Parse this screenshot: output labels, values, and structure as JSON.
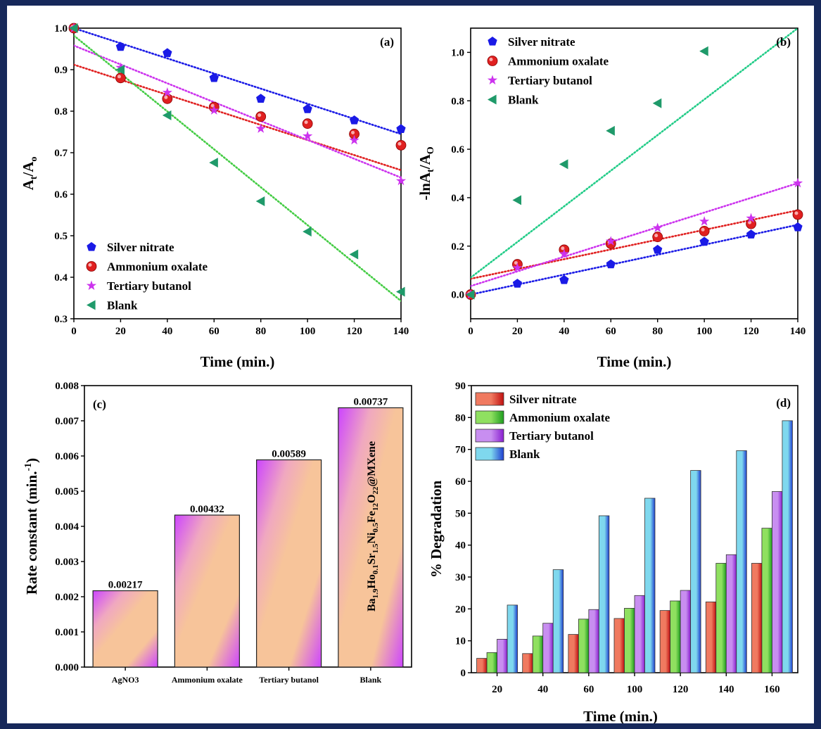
{
  "colors": {
    "frame": "#16285a",
    "silver_nitrate": "#1a1ae6",
    "ammonium_oxalate": "#e02020",
    "tertiary_butanol": "#cc33ee",
    "blank": "#1f9a6a",
    "blank_fit": "#44cc44",
    "blank_fit_b": "#22cc88"
  },
  "chart_data": [
    {
      "panel": "(a)",
      "type": "scatter",
      "xlabel": "Time (min.)",
      "ylabel_main": "A",
      "ylabel_sub1": "t",
      "ylabel_mid": "/A",
      "ylabel_sub2": "o",
      "xlim": [
        0,
        140
      ],
      "ylim": [
        0.3,
        1.0
      ],
      "xticks": [
        "0",
        "20",
        "40",
        "60",
        "80",
        "100",
        "120",
        "140"
      ],
      "yticks": [
        "0.3",
        "0.4",
        "0.5",
        "0.6",
        "0.7",
        "0.8",
        "0.9",
        "1.0"
      ],
      "legend": [
        "Silver nitrate",
        "Ammonium oxalate",
        "Tertiary butanol",
        "Blank"
      ],
      "x": [
        0,
        20,
        40,
        60,
        80,
        100,
        120,
        140
      ],
      "series": [
        {
          "name": "Silver nitrate",
          "marker": "pentagon",
          "values": [
            1.0,
            0.955,
            0.94,
            0.88,
            0.83,
            0.805,
            0.778,
            0.757
          ],
          "fit": [
            1.0,
            0.745
          ]
        },
        {
          "name": "Ammonium oxalate",
          "marker": "circle",
          "values": [
            1.0,
            0.88,
            0.83,
            0.81,
            0.787,
            0.77,
            0.745,
            0.718
          ],
          "fit": [
            0.912,
            0.658
          ]
        },
        {
          "name": "Tertiary butanol",
          "marker": "star",
          "values": [
            1.0,
            0.905,
            0.845,
            0.802,
            0.758,
            0.74,
            0.73,
            0.632
          ],
          "fit": [
            0.958,
            0.64
          ]
        },
        {
          "name": "Blank",
          "marker": "triangle",
          "values": [
            1.0,
            0.9,
            0.79,
            0.676,
            0.583,
            0.51,
            0.455,
            0.365
          ],
          "fit": [
            0.982,
            0.343
          ]
        }
      ]
    },
    {
      "panel": "(b)",
      "type": "scatter",
      "xlabel": "Time (min.)",
      "ylabel_main": "-lnA",
      "ylabel_sub1": "t",
      "ylabel_mid": "/A",
      "ylabel_sub2": "O",
      "xlim": [
        0,
        140
      ],
      "ylim": [
        -0.1,
        1.1
      ],
      "xticks": [
        "0",
        "20",
        "40",
        "60",
        "80",
        "100",
        "120",
        "140"
      ],
      "yticks": [
        "0.0",
        "0.2",
        "0.4",
        "0.6",
        "0.8",
        "1.0"
      ],
      "legend": [
        "Silver nitrate",
        "Ammonium oxalate",
        "Tertiary butanol",
        "Blank"
      ],
      "series": [
        {
          "name": "Silver nitrate",
          "marker": "pentagon",
          "x": [
            0,
            20,
            40,
            60,
            80,
            100,
            120,
            140
          ],
          "values": [
            0.0,
            0.045,
            0.06,
            0.125,
            0.185,
            0.218,
            0.248,
            0.278
          ],
          "fit": [
            0.0,
            0.288
          ]
        },
        {
          "name": "Ammonium oxalate",
          "marker": "circle",
          "x": [
            0,
            20,
            40,
            60,
            80,
            100,
            120,
            140
          ],
          "values": [
            0.0,
            0.125,
            0.185,
            0.21,
            0.238,
            0.262,
            0.292,
            0.33
          ],
          "fit": [
            0.065,
            0.348
          ]
        },
        {
          "name": "Tertiary butanol",
          "marker": "star",
          "x": [
            0,
            20,
            40,
            60,
            80,
            100,
            120,
            140
          ],
          "values": [
            0.0,
            0.11,
            0.168,
            0.22,
            0.275,
            0.302,
            0.315,
            0.46
          ],
          "fit": [
            0.035,
            0.46
          ]
        },
        {
          "name": "Blank",
          "marker": "triangle",
          "x": [
            0,
            20,
            40,
            60,
            80,
            100
          ],
          "values": [
            0.0,
            0.39,
            0.538,
            0.676,
            0.79,
            1.005
          ],
          "fit": [
            0.07,
            1.1
          ]
        }
      ]
    },
    {
      "panel": "(c)",
      "type": "bar",
      "ylabel": "Rate constant (min.",
      "ylabel_sup": "-1",
      "ylabel_end": ")",
      "ylim": [
        0,
        0.008
      ],
      "yticks": [
        "0.000",
        "0.001",
        "0.002",
        "0.003",
        "0.004",
        "0.005",
        "0.006",
        "0.007",
        "0.008"
      ],
      "categories": [
        "AgNO3",
        "Ammonium oxalate",
        "Tertiary butanol",
        "Blank"
      ],
      "values": [
        0.00217,
        0.00432,
        0.00589,
        0.00737
      ],
      "value_labels": [
        "0.00217",
        "0.00432",
        "0.00589",
        "0.00737"
      ],
      "annotation": [
        {
          "t": "Ba",
          "s": ""
        },
        {
          "t": "1.9",
          "s": "sub"
        },
        {
          "t": "Ho",
          "s": ""
        },
        {
          "t": "0.1",
          "s": "sub"
        },
        {
          "t": "Sr",
          "s": ""
        },
        {
          "t": "1.5",
          "s": "sub"
        },
        {
          "t": "Ni",
          "s": ""
        },
        {
          "t": "0.5",
          "s": "sub"
        },
        {
          "t": "Fe",
          "s": ""
        },
        {
          "t": "12",
          "s": "sub"
        },
        {
          "t": "O",
          "s": ""
        },
        {
          "t": "22",
          "s": "sub"
        },
        {
          "t": "@MXene",
          "s": ""
        }
      ]
    },
    {
      "panel": "(d)",
      "type": "bar",
      "xlabel": "Time (min.)",
      "ylabel": "% Degradation",
      "ylim": [
        0,
        90
      ],
      "yticks": [
        "0",
        "10",
        "20",
        "30",
        "40",
        "50",
        "60",
        "70",
        "80",
        "90"
      ],
      "categories": [
        "20",
        "40",
        "60",
        "100",
        "120",
        "140",
        "160"
      ],
      "legend": [
        "Silver nitrate",
        "Ammonium oxalate",
        "Tertiary butanol",
        "Blank"
      ],
      "series": [
        {
          "name": "Silver nitrate",
          "color": "#f07a60",
          "values": [
            4.5,
            6.0,
            12.0,
            17.0,
            19.5,
            22.2,
            34.3
          ]
        },
        {
          "name": "Ammonium oxalate",
          "color": "#8fe060",
          "values": [
            6.3,
            11.5,
            16.8,
            20.2,
            22.5,
            34.3,
            45.3
          ]
        },
        {
          "name": "Tertiary butanol",
          "color": "#c88ef0",
          "values": [
            10.5,
            15.5,
            19.8,
            24.2,
            25.8,
            37.0,
            56.8
          ]
        },
        {
          "name": "Blank",
          "color": "#7fd8ee",
          "values": [
            21.2,
            32.3,
            49.2,
            54.7,
            63.4,
            69.6,
            79.0
          ]
        }
      ]
    }
  ]
}
